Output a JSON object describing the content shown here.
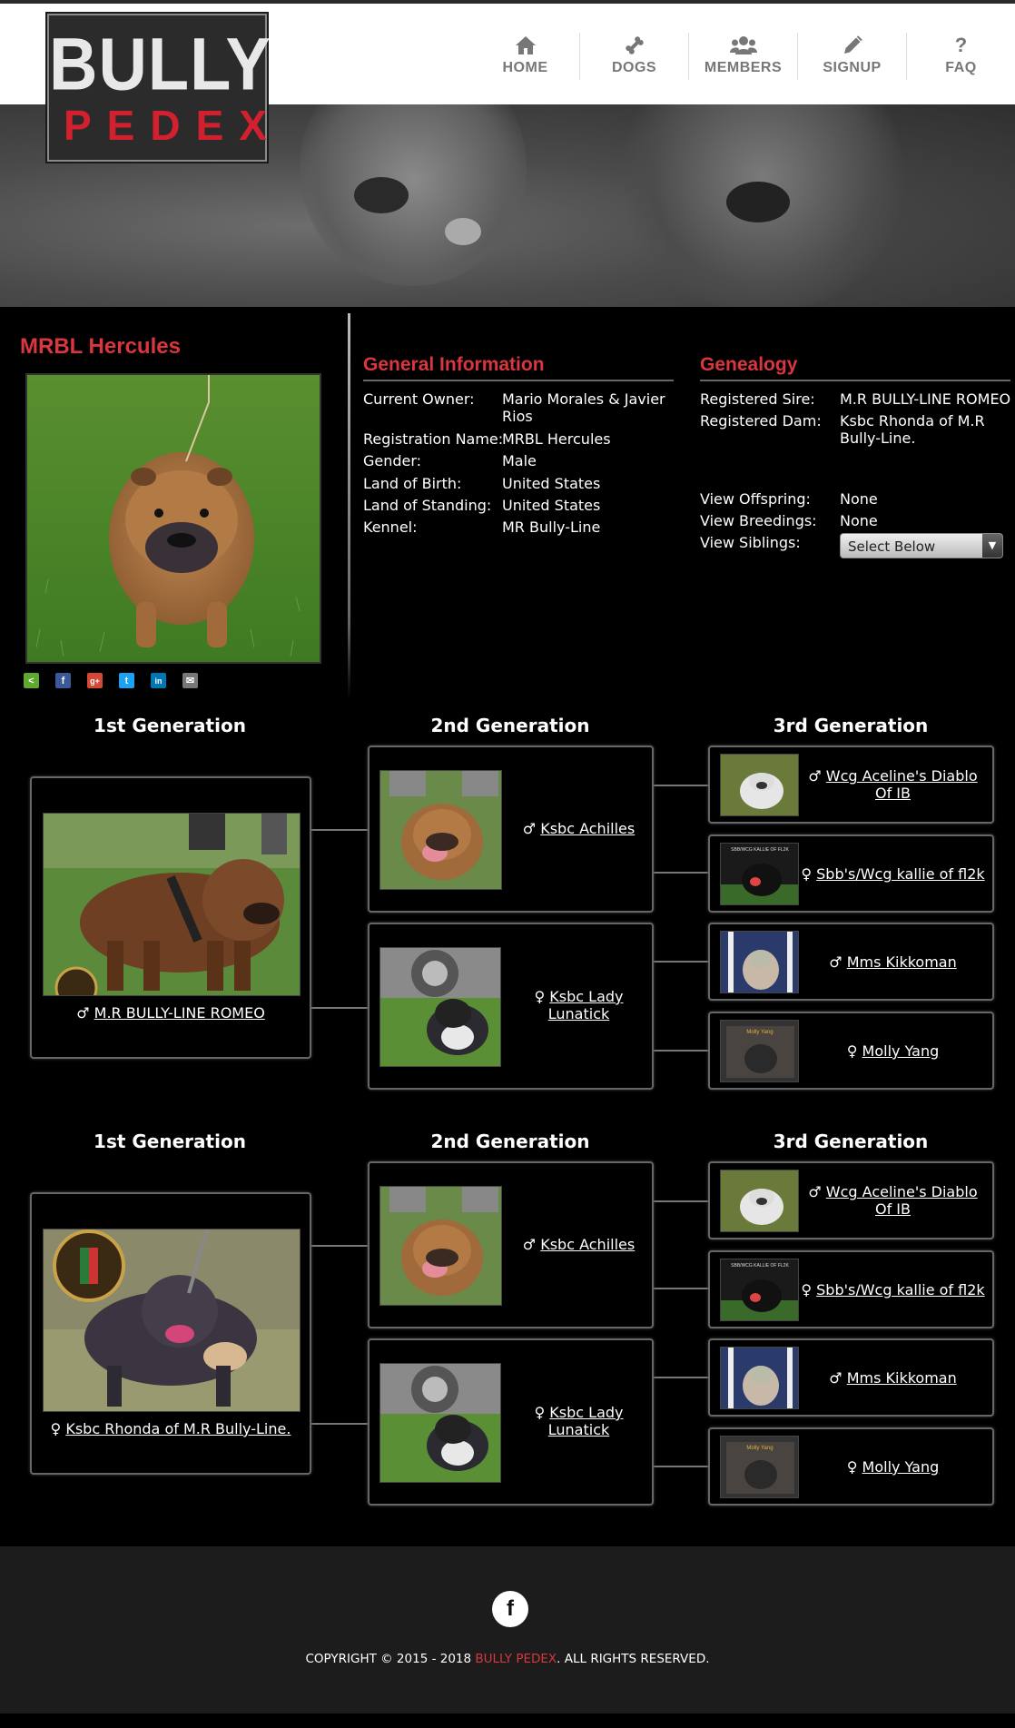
{
  "logo": {
    "line1": "BULLY",
    "line2": "PEDEX"
  },
  "nav": [
    {
      "label": "HOME",
      "icon": "home-icon"
    },
    {
      "label": "DOGS",
      "icon": "bone-icon"
    },
    {
      "label": "MEMBERS",
      "icon": "users-icon"
    },
    {
      "label": "SIGNUP",
      "icon": "pencil-icon"
    },
    {
      "label": "FAQ",
      "icon": "question-icon"
    }
  ],
  "profile": {
    "name": "MRBL Hercules"
  },
  "share": [
    "share-icon",
    "facebook-icon",
    "google-plus-icon",
    "twitter-icon",
    "linkedin-icon",
    "email-icon"
  ],
  "general": {
    "title": "General Information",
    "rows": [
      {
        "label": "Current Owner:",
        "value": "Mario Morales & Javier Rios"
      },
      {
        "label": "Registration Name:",
        "value": "MRBL Hercules"
      },
      {
        "label": "Gender:",
        "value": "Male"
      },
      {
        "label": "Land of Birth:",
        "value": "United States"
      },
      {
        "label": "Land of Standing:",
        "value": "United States"
      },
      {
        "label": "Kennel:",
        "value": "MR Bully-Line"
      }
    ]
  },
  "genealogy": {
    "title": "Genealogy",
    "rows": [
      {
        "label": "Registered Sire:",
        "value": "M.R BULLY-LINE ROMEO"
      },
      {
        "label": "Registered Dam:",
        "value": "Ksbc Rhonda of M.R Bully-Line."
      },
      {
        "label": "View Offspring:",
        "value": "None"
      },
      {
        "label": "View Breedings:",
        "value": "None"
      },
      {
        "label": "View Siblings:",
        "value": ""
      }
    ],
    "siblings_select": "Select Below"
  },
  "gen_titles": {
    "g1": "1st Generation",
    "g2": "2nd Generation",
    "g3": "3rd Generation"
  },
  "pedigree": [
    {
      "first": {
        "sex": "♂",
        "name": "M.R BULLY-LINE ROMEO"
      },
      "second": [
        {
          "sex": "♂",
          "name": "Ksbc Achilles"
        },
        {
          "sex": "♀",
          "name": "Ksbc Lady Lunatick"
        }
      ],
      "third": [
        {
          "sex": "♂",
          "name": "Wcg Aceline's Diablo Of IB"
        },
        {
          "sex": "♀",
          "name": "Sbb's/Wcg kallie of fl2k"
        },
        {
          "sex": "♂",
          "name": "Mms Kikkoman"
        },
        {
          "sex": "♀",
          "name": "Molly Yang"
        }
      ]
    },
    {
      "first": {
        "sex": "♀",
        "name": "Ksbc Rhonda of M.R Bully-Line."
      },
      "second": [
        {
          "sex": "♂",
          "name": "Ksbc Achilles"
        },
        {
          "sex": "♀",
          "name": "Ksbc Lady Lunatick"
        }
      ],
      "third": [
        {
          "sex": "♂",
          "name": "Wcg Aceline's Diablo Of IB"
        },
        {
          "sex": "♀",
          "name": "Sbb's/Wcg kallie of fl2k"
        },
        {
          "sex": "♂",
          "name": "Mms Kikkoman"
        },
        {
          "sex": "♀",
          "name": "Molly Yang"
        }
      ]
    }
  ],
  "thumb_captions": {
    "kallie": "SBB/WCG KALLIE OF FL2K",
    "molly": "Molly Yang"
  },
  "footer": {
    "fb_icon": "f",
    "copy_pre": "COPYRIGHT © 2015 - 2018 ",
    "copy_brand": "BULLY PEDEX",
    "copy_post": ". ALL RIGHTS RESERVED."
  },
  "colors": {
    "accent": "#d9363e",
    "bg": "#000000"
  }
}
